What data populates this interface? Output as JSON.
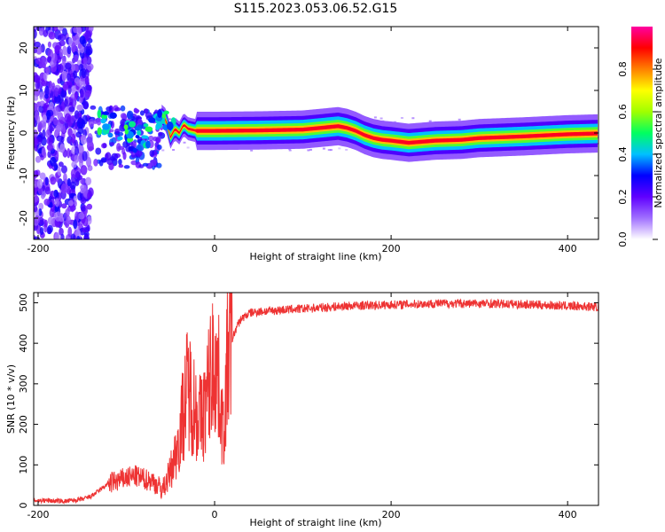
{
  "title": "S115.2023.053.06.52.G15",
  "chart_data": [
    {
      "type": "heatmap",
      "xlabel": "Height of straight line (km)",
      "ylabel": "Frequency (Hz)",
      "xlim": [
        -205,
        435
      ],
      "ylim": [
        -25,
        25
      ],
      "x_ticks": [
        -200,
        0,
        200,
        400
      ],
      "y_ticks": [
        -20,
        -10,
        0,
        10,
        20
      ],
      "colorbar": {
        "label": "Normalized spectral amplitude",
        "range": [
          0,
          1
        ],
        "ticks": [
          "0.0",
          "0.2",
          "0.4",
          "0.6",
          "0.8"
        ],
        "colormap": [
          "#ffffff",
          "#a070ff",
          "#6000ff",
          "#0000ff",
          "#00c0ff",
          "#00ff60",
          "#a0ff00",
          "#ffff00",
          "#ff8000",
          "#ff0000",
          "#ff00a0"
        ]
      },
      "ridge": {
        "x": [
          -135,
          -115,
          -100,
          -85,
          -70,
          -60,
          -55,
          -50,
          -45,
          -40,
          -35,
          -30,
          -20,
          0,
          50,
          100,
          140,
          150,
          160,
          170,
          180,
          190,
          200,
          220,
          250,
          280,
          300,
          350,
          400,
          435
        ],
        "freq": [
          3.5,
          2,
          0,
          -2,
          1,
          4,
          3,
          -1,
          1,
          0,
          2,
          1,
          0.5,
          0.5,
          0.6,
          0.8,
          1.6,
          1.2,
          0.5,
          -0.5,
          -1.2,
          -1.6,
          -1.8,
          -2.3,
          -1.8,
          -1.6,
          -1.2,
          -0.8,
          -0.3,
          -0.1
        ]
      }
    },
    {
      "type": "line",
      "xlabel": "Height of straight line (km)",
      "ylabel": "SNR (10 * v/v)",
      "xlim": [
        -205,
        435
      ],
      "ylim": [
        0,
        525
      ],
      "x_ticks": [
        -200,
        0,
        200,
        400
      ],
      "y_ticks": [
        0,
        100,
        200,
        300,
        400,
        500
      ],
      "color": "#ee3333",
      "series": [
        {
          "x": [
            -205,
            -190,
            -170,
            -150,
            -140,
            -130,
            -120,
            -110,
            -100,
            -90,
            -80,
            -70,
            -60,
            -55,
            -50,
            -45,
            -40,
            -35,
            -30,
            -25,
            -20,
            -15,
            -10,
            -5,
            0,
            5,
            10,
            15,
            20,
            25,
            30,
            40,
            50,
            75,
            100,
            150,
            200,
            250,
            300,
            350,
            400,
            435
          ],
          "values": [
            12,
            12,
            10,
            15,
            22,
            38,
            55,
            60,
            68,
            72,
            65,
            60,
            40,
            55,
            85,
            120,
            170,
            240,
            300,
            260,
            230,
            210,
            250,
            320,
            360,
            300,
            170,
            370,
            410,
            440,
            460,
            475,
            478,
            482,
            485,
            492,
            495,
            498,
            498,
            496,
            492,
            490
          ]
        }
      ]
    }
  ]
}
